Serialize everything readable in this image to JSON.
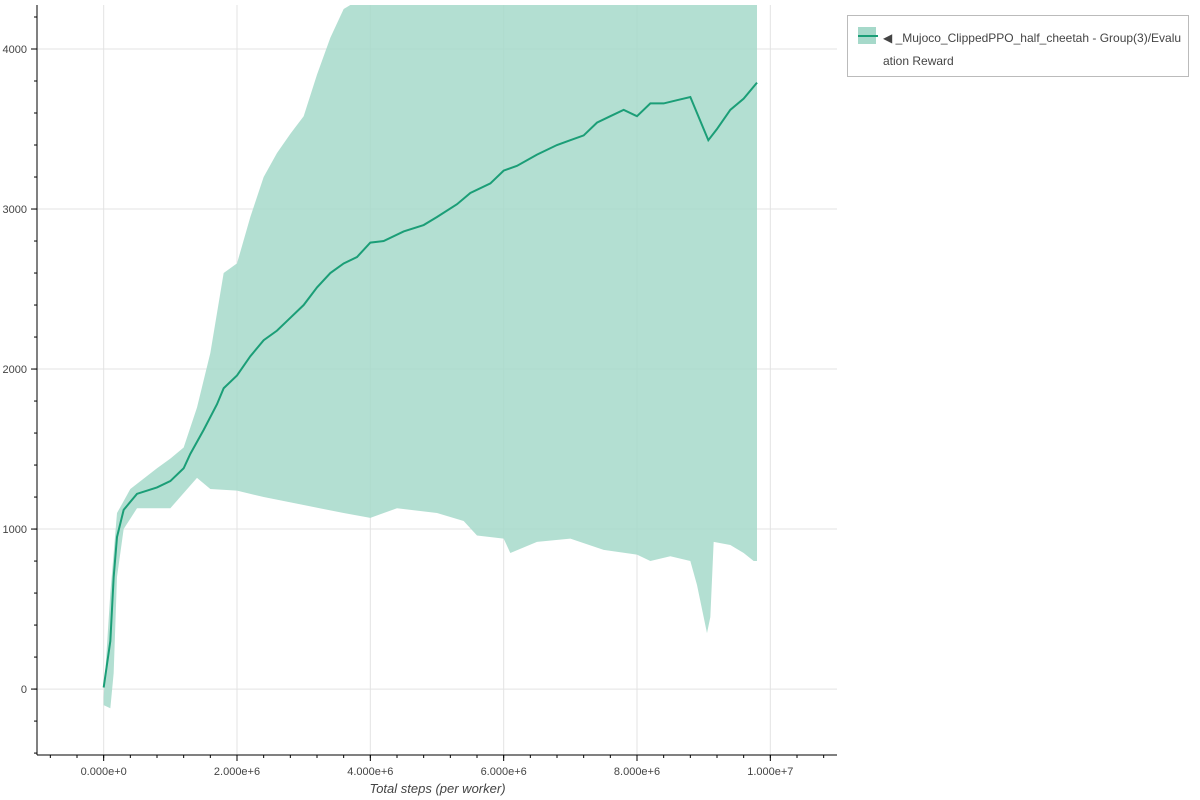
{
  "chart_data": {
    "type": "line",
    "title": "",
    "xlabel": "Total steps (per worker)",
    "ylabel": "",
    "xlim": [
      -1000000,
      11000000
    ],
    "ylim": [
      -412,
      4275
    ],
    "grid": true,
    "legend_position": "top-right-outside",
    "x_ticks": [
      0,
      2000000,
      4000000,
      6000000,
      8000000,
      10000000
    ],
    "x_tick_labels": [
      "0.000e+0",
      "2.000e+6",
      "4.000e+6",
      "6.000e+6",
      "8.000e+6",
      "1.000e+7"
    ],
    "y_ticks": [
      0,
      1000,
      2000,
      3000,
      4000
    ],
    "y_tick_labels": [
      "0",
      "1000",
      "2000",
      "3000",
      "4000"
    ],
    "colors": {
      "line": "#1b9e77",
      "band": "#a6d9ca"
    },
    "series": [
      {
        "name": "◀ _Mujoco_ClippedPPO_half_cheetah - Group(3)/Evaluation Reward",
        "x": [
          0,
          100000,
          150000,
          200000,
          300000,
          500000,
          800000,
          1000000,
          1200000,
          1300000,
          1500000,
          1700000,
          1800000,
          2000000,
          2200000,
          2400000,
          2600000,
          2800000,
          3000000,
          3200000,
          3400000,
          3600000,
          3800000,
          4000000,
          4200000,
          4500000,
          4800000,
          5000000,
          5300000,
          5500000,
          5800000,
          6000000,
          6200000,
          6500000,
          6800000,
          7000000,
          7200000,
          7400000,
          7600000,
          7800000,
          8000000,
          8200000,
          8400000,
          8600000,
          8800000,
          9070000,
          9200000,
          9400000,
          9600000,
          9800000
        ],
        "mean": [
          10,
          300,
          700,
          950,
          1120,
          1220,
          1260,
          1300,
          1380,
          1470,
          1620,
          1780,
          1880,
          1960,
          2080,
          2180,
          2240,
          2320,
          2400,
          2510,
          2600,
          2660,
          2700,
          2790,
          2800,
          2860,
          2900,
          2950,
          3030,
          3100,
          3160,
          3240,
          3270,
          3340,
          3400,
          3430,
          3460,
          3540,
          3580,
          3620,
          3580,
          3660,
          3660,
          3680,
          3700,
          3430,
          3500,
          3620,
          3690,
          3790
        ]
      }
    ],
    "band": {
      "upper": {
        "x": [
          0,
          100000,
          200000,
          400000,
          800000,
          1000000,
          1200000,
          1400000,
          1600000,
          1800000,
          2000000,
          2200000,
          2400000,
          2600000,
          2800000,
          3000000,
          3200000,
          3400000,
          3600000,
          3800000,
          9800000
        ],
        "y": [
          -50,
          600,
          1100,
          1250,
          1380,
          1440,
          1510,
          1760,
          2100,
          2600,
          2660,
          2950,
          3200,
          3350,
          3470,
          3580,
          3840,
          4070,
          4250,
          4300,
          4300
        ]
      },
      "lower": {
        "x": [
          0,
          100000,
          150000,
          200000,
          300000,
          500000,
          1000000,
          1400000,
          1600000,
          2000000,
          2400000,
          3000000,
          3600000,
          4000000,
          4400000,
          5000000,
          5400000,
          5600000,
          6000000,
          6100000,
          6500000,
          7000000,
          7500000,
          8000000,
          8200000,
          8500000,
          8800000,
          8900000,
          9000000,
          9050000,
          9100000,
          9150000,
          9400000,
          9600000,
          9750000,
          9800000
        ],
        "y": [
          -100,
          -120,
          100,
          700,
          1000,
          1130,
          1130,
          1320,
          1250,
          1240,
          1200,
          1150,
          1100,
          1070,
          1130,
          1100,
          1050,
          960,
          940,
          850,
          920,
          940,
          870,
          840,
          800,
          830,
          800,
          650,
          450,
          350,
          450,
          920,
          900,
          850,
          800,
          800
        ]
      }
    }
  }
}
